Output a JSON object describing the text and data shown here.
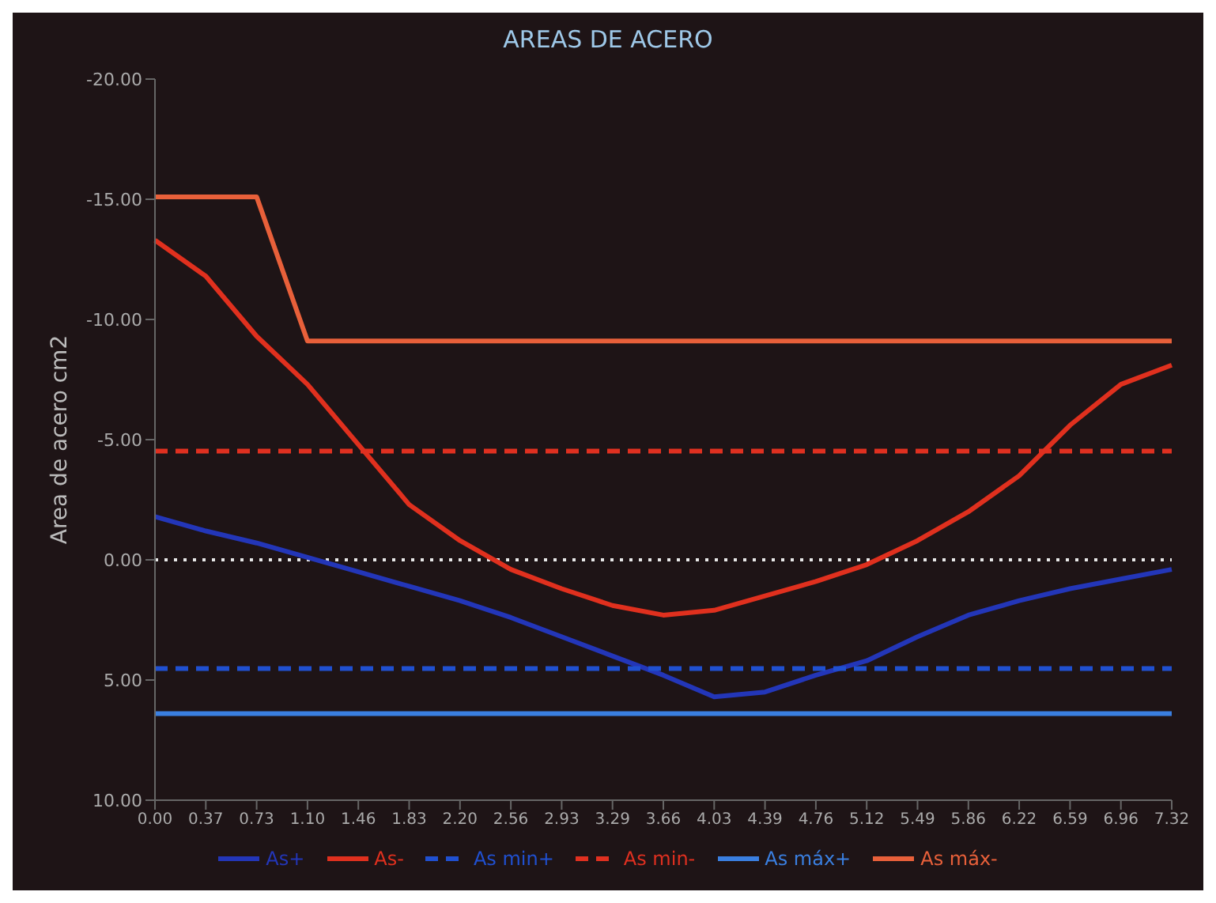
{
  "chart_data": {
    "type": "line",
    "title": "AREAS DE ACERO",
    "ylabel": "Area de acero cm2",
    "categories": [
      "0.00",
      "0.37",
      "0.73",
      "1.10",
      "1.46",
      "1.83",
      "2.20",
      "2.56",
      "2.93",
      "3.29",
      "3.66",
      "4.03",
      "4.39",
      "4.76",
      "5.12",
      "5.49",
      "5.86",
      "6.22",
      "6.59",
      "6.96",
      "7.32"
    ],
    "series": [
      {
        "name": "As+",
        "color": "#2336b8",
        "line_style": "solid",
        "values": [
          -1.8,
          -1.2,
          -0.7,
          -0.1,
          0.5,
          1.1,
          1.7,
          2.4,
          3.2,
          4.0,
          4.8,
          5.7,
          5.5,
          4.8,
          4.2,
          3.2,
          2.3,
          1.7,
          1.2,
          0.8,
          0.4
        ]
      },
      {
        "name": "As-",
        "color": "#e0301e",
        "line_style": "solid",
        "values": [
          -13.3,
          -11.8,
          -9.3,
          -7.3,
          -4.8,
          -2.3,
          -0.8,
          0.4,
          1.2,
          1.9,
          2.3,
          2.1,
          1.5,
          0.9,
          0.2,
          -0.8,
          -2.0,
          -3.5,
          -5.6,
          -7.3,
          -8.1
        ]
      },
      {
        "name": "As min+",
        "color": "#2050d0",
        "line_style": "dashed",
        "values": [
          4.52,
          4.52,
          4.52,
          4.52,
          4.52,
          4.52,
          4.52,
          4.52,
          4.52,
          4.52,
          4.52,
          4.52,
          4.52,
          4.52,
          4.52,
          4.52,
          4.52,
          4.52,
          4.52,
          4.52,
          4.52
        ]
      },
      {
        "name": "As min-",
        "color": "#e03020",
        "line_style": "dashed",
        "values": [
          -4.52,
          -4.52,
          -4.52,
          -4.52,
          -4.52,
          -4.52,
          -4.52,
          -4.52,
          -4.52,
          -4.52,
          -4.52,
          -4.52,
          -4.52,
          -4.52,
          -4.52,
          -4.52,
          -4.52,
          -4.52,
          -4.52,
          -4.52,
          -4.52
        ]
      },
      {
        "name": "As máx+",
        "color": "#3a7fe0",
        "line_style": "solid",
        "values": [
          6.4,
          6.4,
          6.4,
          6.4,
          6.4,
          6.4,
          6.4,
          6.4,
          6.4,
          6.4,
          6.4,
          6.4,
          6.4,
          6.4,
          6.4,
          6.4,
          6.4,
          6.4,
          6.4,
          6.4,
          6.4
        ]
      },
      {
        "name": "As máx-",
        "color": "#e8603a",
        "line_style": "solid",
        "values": [
          -15.1,
          -15.1,
          -15.1,
          -9.1,
          -9.1,
          -9.1,
          -9.1,
          -9.1,
          -9.1,
          -9.1,
          -9.1,
          -9.1,
          -9.1,
          -9.1,
          -9.1,
          -9.1,
          -9.1,
          -9.1,
          -9.1,
          -9.1,
          -9.1
        ]
      }
    ],
    "ylim": [
      10,
      -20
    ],
    "yticks": [
      {
        "value": -20,
        "label": "-20.00"
      },
      {
        "value": -15,
        "label": "-15.00"
      },
      {
        "value": -10,
        "label": "-10.00"
      },
      {
        "value": -5,
        "label": "-5.00"
      },
      {
        "value": 0,
        "label": "0.00"
      },
      {
        "value": 5,
        "label": "5.00"
      },
      {
        "value": 10,
        "label": "10.00"
      }
    ],
    "ref_lines": [
      {
        "axis": "y",
        "value": 0,
        "color": "#e8e8e8",
        "line_style": "dotted"
      }
    ],
    "grid": false,
    "legend": "bottom",
    "marker": "none"
  }
}
